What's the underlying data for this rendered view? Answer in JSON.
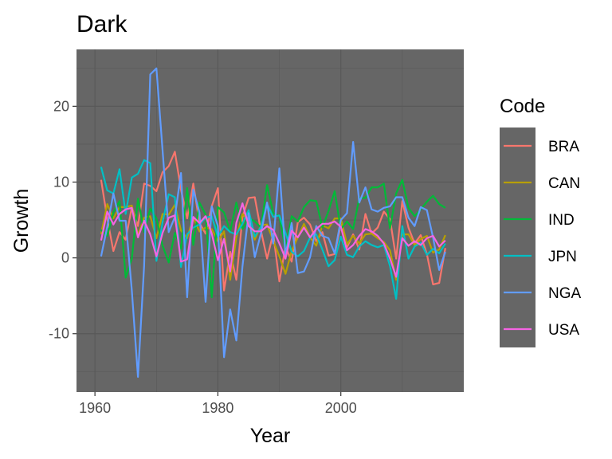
{
  "chart_data": {
    "type": "line",
    "title": "Dark",
    "xlabel": "Year",
    "ylabel": "Growth",
    "xlim": [
      1957,
      2020
    ],
    "ylim": [
      -17.7,
      27.5
    ],
    "xticks": [
      1960,
      1980,
      2000
    ],
    "yticks": [
      -10,
      0,
      10,
      20
    ],
    "xtick_labels": [
      "1960",
      "1980",
      "2000"
    ],
    "ytick_labels": [
      "-10",
      "0",
      "10",
      "20"
    ],
    "grid": true,
    "panel_background": "#666666",
    "legend": {
      "title": "Code",
      "placement": "right"
    },
    "x": [
      1961,
      1962,
      1963,
      1964,
      1965,
      1966,
      1967,
      1968,
      1969,
      1970,
      1971,
      1972,
      1973,
      1974,
      1975,
      1976,
      1977,
      1978,
      1979,
      1980,
      1981,
      1982,
      1983,
      1984,
      1985,
      1986,
      1987,
      1988,
      1989,
      1990,
      1991,
      1992,
      1993,
      1994,
      1995,
      1996,
      1997,
      1998,
      1999,
      2000,
      2001,
      2002,
      2003,
      2004,
      2005,
      2006,
      2007,
      2008,
      2009,
      2010,
      2011,
      2012,
      2013,
      2014,
      2015,
      2016,
      2017
    ],
    "series": [
      {
        "name": "BRA",
        "color": "#F8766D",
        "values": [
          10.3,
          5.2,
          0.9,
          3.4,
          2.4,
          6.7,
          4.2,
          9.8,
          9.5,
          8.8,
          11.3,
          12.1,
          14.0,
          9.0,
          5.2,
          9.8,
          4.6,
          3.2,
          6.8,
          9.2,
          -4.3,
          0.8,
          -2.9,
          5.4,
          7.9,
          8.0,
          3.6,
          -0.1,
          3.2,
          -3.1,
          1.5,
          -0.5,
          4.7,
          5.3,
          4.4,
          2.2,
          3.4,
          0.3,
          0.5,
          4.4,
          1.4,
          3.1,
          1.1,
          5.8,
          3.2,
          4.0,
          6.1,
          5.1,
          -0.1,
          7.5,
          4.0,
          1.9,
          3.0,
          0.5,
          -3.5,
          -3.3,
          1.3
        ]
      },
      {
        "name": "CAN",
        "color": "#B79F00",
        "values": [
          3.1,
          7.1,
          5.2,
          6.7,
          6.7,
          6.9,
          3.0,
          5.3,
          5.5,
          2.6,
          5.8,
          5.7,
          7.0,
          3.6,
          2.6,
          5.3,
          3.5,
          4.0,
          3.8,
          2.2,
          3.5,
          -2.9,
          2.7,
          5.8,
          4.8,
          2.4,
          4.3,
          4.4,
          2.3,
          0.2,
          -2.1,
          0.9,
          2.7,
          4.5,
          2.7,
          1.6,
          4.3,
          3.9,
          5.2,
          5.2,
          1.8,
          2.9,
          1.9,
          3.1,
          3.2,
          2.6,
          2.1,
          1.0,
          -2.9,
          3.1,
          3.1,
          1.7,
          2.5,
          2.9,
          0.7,
          1.1,
          3.0
        ]
      },
      {
        "name": "IND",
        "color": "#00BA38",
        "values": [
          3.7,
          2.9,
          6.0,
          7.5,
          -2.6,
          -0.1,
          7.8,
          3.4,
          6.5,
          5.2,
          1.6,
          -0.6,
          3.3,
          1.2,
          9.2,
          1.7,
          7.3,
          5.7,
          -5.2,
          6.7,
          6.0,
          3.5,
          7.3,
          3.8,
          5.3,
          4.8,
          4.0,
          9.6,
          5.9,
          5.5,
          1.1,
          5.5,
          4.8,
          6.7,
          7.6,
          7.5,
          4.0,
          6.2,
          8.8,
          3.8,
          4.8,
          3.8,
          7.9,
          7.9,
          9.3,
          9.3,
          9.8,
          3.9,
          8.5,
          10.3,
          6.6,
          5.5,
          6.4,
          7.4,
          8.2,
          7.1,
          6.6
        ]
      },
      {
        "name": "JPN",
        "color": "#00BFC4",
        "values": [
          12.0,
          8.9,
          8.5,
          11.7,
          5.8,
          10.6,
          11.1,
          12.9,
          12.5,
          -0.4,
          4.7,
          8.4,
          8.0,
          -1.2,
          3.1,
          4.0,
          4.4,
          5.3,
          5.5,
          2.8,
          4.2,
          3.4,
          3.1,
          4.5,
          6.3,
          2.8,
          4.1,
          7.1,
          5.4,
          5.6,
          3.3,
          0.8,
          0.2,
          0.9,
          2.7,
          3.1,
          1.1,
          -1.1,
          -0.3,
          2.8,
          0.4,
          0.1,
          1.5,
          2.2,
          1.7,
          1.4,
          1.7,
          -1.1,
          -5.4,
          4.2,
          -0.1,
          1.5,
          2.0,
          0.4,
          1.2,
          0.6,
          1.9
        ]
      },
      {
        "name": "NGA",
        "color": "#619CFF",
        "values": [
          0.2,
          4.1,
          8.5,
          4.9,
          4.9,
          -4.3,
          -15.7,
          -1.0,
          24.2,
          25.0,
          14.2,
          3.4,
          5.4,
          11.2,
          -5.2,
          9.0,
          6.0,
          -5.8,
          6.8,
          4.2,
          -13.1,
          -6.8,
          -10.9,
          -1.1,
          5.9,
          0.1,
          3.2,
          7.3,
          1.9,
          11.8,
          0.4,
          4.6,
          -2.0,
          -1.8,
          0.1,
          4.2,
          2.9,
          2.6,
          0.6,
          5.0,
          5.9,
          15.3,
          7.3,
          9.3,
          6.4,
          6.1,
          6.6,
          6.8,
          8.0,
          8.0,
          5.3,
          4.2,
          6.7,
          6.3,
          2.7,
          -1.6,
          0.8
        ]
      },
      {
        "name": "USA",
        "color": "#F564E3",
        "values": [
          2.3,
          6.1,
          4.4,
          5.8,
          6.4,
          6.6,
          2.7,
          4.9,
          3.1,
          0.2,
          3.3,
          5.3,
          5.6,
          -0.5,
          -0.2,
          5.4,
          4.6,
          5.5,
          3.2,
          -0.3,
          2.5,
          -1.8,
          4.6,
          7.2,
          4.2,
          3.5,
          3.5,
          4.2,
          3.7,
          1.9,
          -0.1,
          3.6,
          2.7,
          4.0,
          2.7,
          3.8,
          4.5,
          4.5,
          4.8,
          4.1,
          1.0,
          1.7,
          2.9,
          3.8,
          3.5,
          2.9,
          1.9,
          -0.1,
          -2.5,
          2.6,
          1.6,
          2.2,
          1.7,
          2.6,
          2.9,
          1.5,
          2.3
        ]
      }
    ]
  }
}
